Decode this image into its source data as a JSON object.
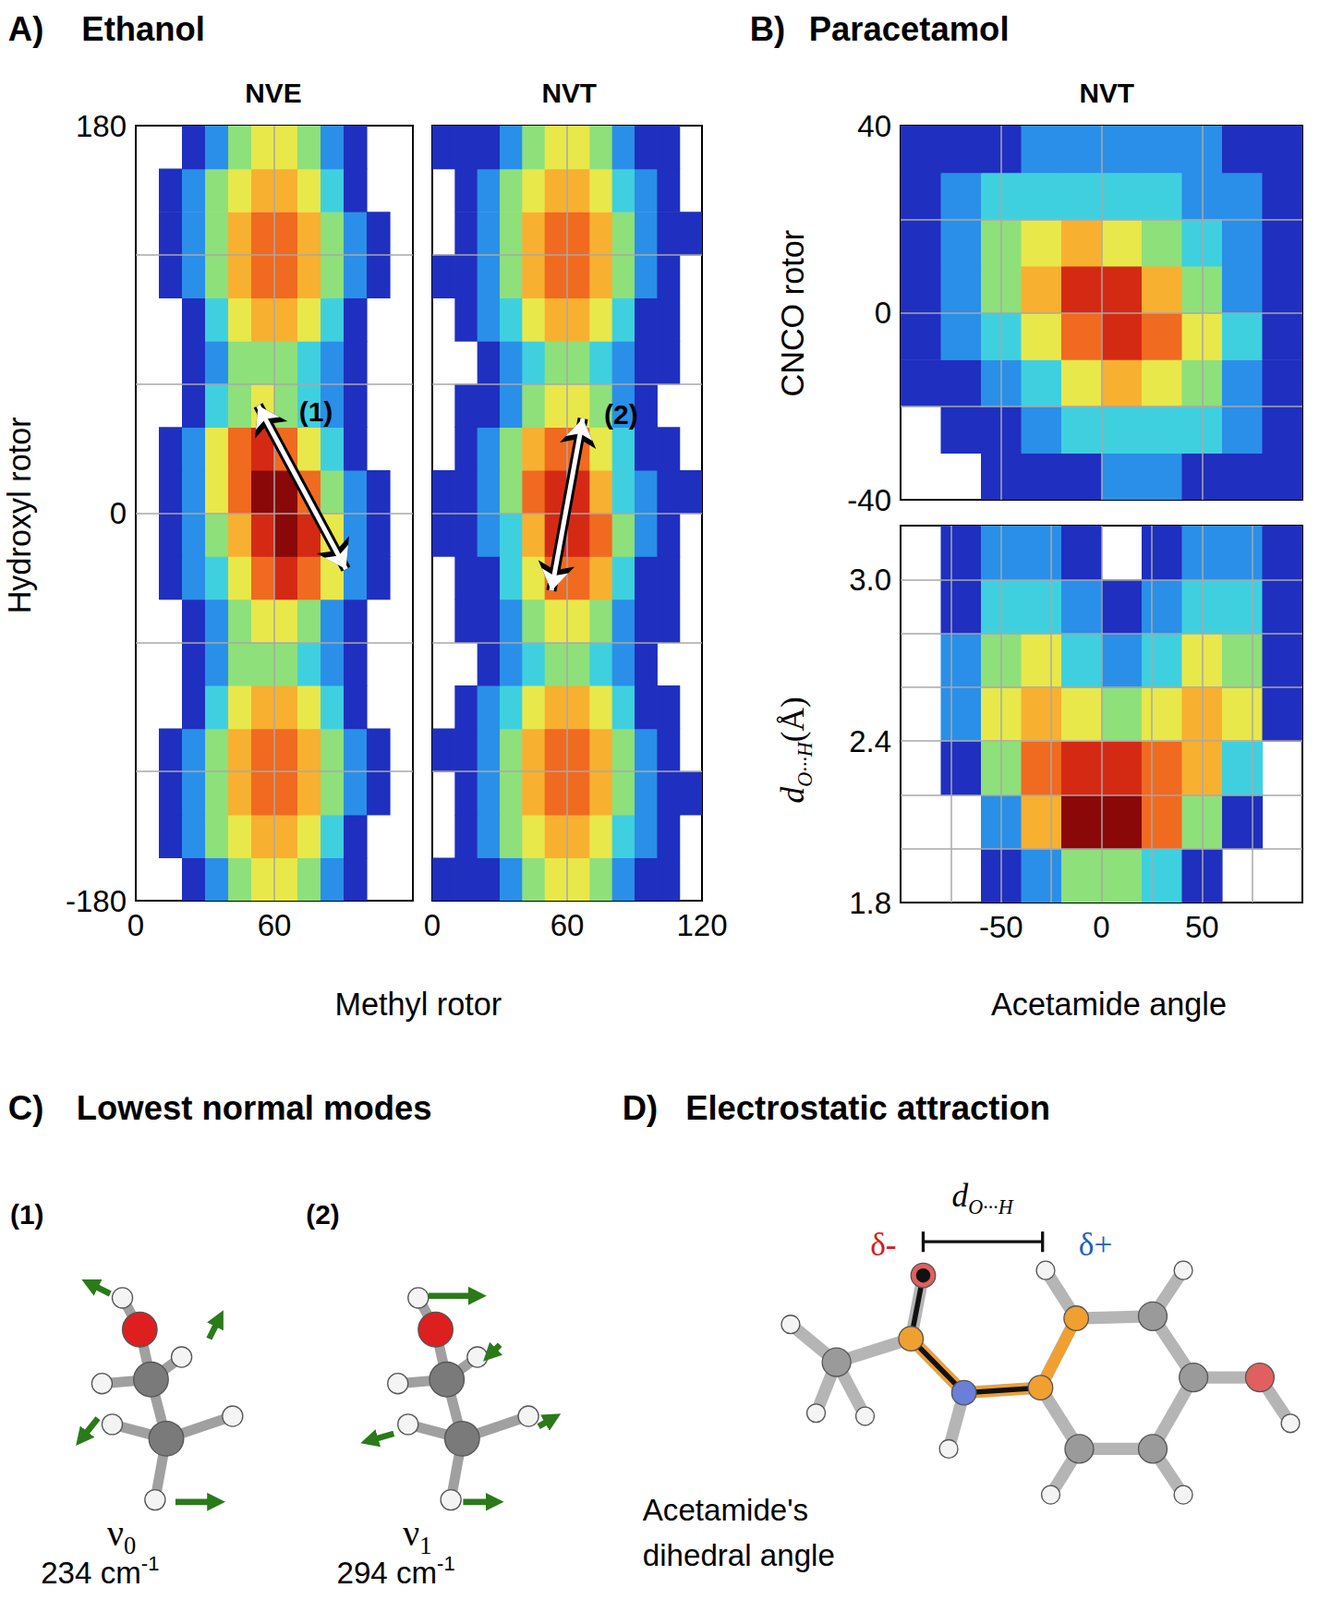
{
  "panels": [
    {
      "letter": "A)",
      "title": "Ethanol"
    },
    {
      "letter": "B)",
      "title": "Paracetamol"
    },
    {
      "letter": "C)",
      "title": "Lowest normal modes"
    },
    {
      "letter": "D)",
      "title": "Electrostatic attraction"
    }
  ],
  "chart_data": [
    {
      "type": "heatmap",
      "title": "NVE",
      "xlabel": "Methyl rotor",
      "ylabel": "Hydroxyl rotor",
      "xlim": [
        0,
        120
      ],
      "xticks": [
        0,
        60
      ],
      "ylim": [
        -180,
        180
      ],
      "yticks": [
        -180,
        0,
        180
      ],
      "grid": true,
      "xgrid": [
        60
      ],
      "ygrid": [
        -120,
        -60,
        0,
        60,
        120
      ],
      "x": [
        5,
        15,
        25,
        35,
        45,
        55,
        65,
        75,
        85,
        95,
        105,
        115
      ],
      "y": [
        -170,
        -150,
        -130,
        -110,
        -90,
        -70,
        -50,
        -30,
        -10,
        10,
        30,
        50,
        70,
        90,
        110,
        130,
        150,
        170
      ],
      "cells": [
        [
          0,
          0,
          1,
          2,
          4,
          5,
          5,
          4,
          2,
          1,
          0,
          0
        ],
        [
          0,
          1,
          2,
          4,
          5,
          6,
          6,
          5,
          3,
          1,
          0,
          0
        ],
        [
          0,
          1,
          2,
          4,
          6,
          7,
          7,
          6,
          4,
          2,
          1,
          0
        ],
        [
          0,
          1,
          2,
          4,
          6,
          7,
          7,
          6,
          4,
          2,
          1,
          0
        ],
        [
          0,
          0,
          1,
          3,
          5,
          6,
          6,
          5,
          3,
          1,
          0,
          0
        ],
        [
          0,
          0,
          1,
          2,
          4,
          4,
          4,
          3,
          2,
          1,
          0,
          0
        ],
        [
          0,
          0,
          1,
          2,
          4,
          5,
          5,
          4,
          2,
          1,
          0,
          0
        ],
        [
          0,
          1,
          2,
          3,
          5,
          7,
          8,
          7,
          5,
          2,
          1,
          0
        ],
        [
          0,
          1,
          2,
          4,
          6,
          8,
          9,
          8,
          5,
          2,
          1,
          0
        ],
        [
          0,
          1,
          2,
          5,
          7,
          9,
          9,
          7,
          4,
          2,
          1,
          0
        ],
        [
          0,
          1,
          2,
          5,
          7,
          8,
          7,
          5,
          3,
          1,
          0,
          0
        ],
        [
          0,
          0,
          1,
          3,
          4,
          5,
          4,
          3,
          2,
          1,
          0,
          0
        ],
        [
          0,
          0,
          1,
          2,
          4,
          4,
          4,
          3,
          2,
          1,
          0,
          0
        ],
        [
          0,
          0,
          1,
          3,
          5,
          6,
          6,
          5,
          3,
          1,
          0,
          0
        ],
        [
          0,
          1,
          2,
          4,
          6,
          7,
          7,
          6,
          4,
          2,
          1,
          0
        ],
        [
          0,
          1,
          2,
          4,
          6,
          7,
          7,
          6,
          4,
          2,
          1,
          0
        ],
        [
          0,
          1,
          2,
          4,
          5,
          6,
          6,
          5,
          3,
          1,
          0,
          0
        ],
        [
          0,
          0,
          1,
          2,
          4,
          5,
          5,
          4,
          2,
          1,
          0,
          0
        ]
      ],
      "annotations": [
        {
          "text": "(1)",
          "x": 78,
          "y": 47,
          "arrow": [
            [
              53,
              50
            ],
            [
              91,
              -26
            ]
          ]
        }
      ]
    },
    {
      "type": "heatmap",
      "title": "NVT",
      "tick_labels": "x",
      "xlim": [
        0,
        120
      ],
      "xticks": [
        0,
        60,
        120
      ],
      "ylim": [
        -180,
        180
      ],
      "yticks": [
        -180,
        0,
        180
      ],
      "grid": true,
      "xgrid": [
        60
      ],
      "ygrid": [
        -120,
        -60,
        0,
        60,
        120
      ],
      "x": [
        5,
        15,
        25,
        35,
        45,
        55,
        65,
        75,
        85,
        95,
        105,
        115
      ],
      "y": [
        -170,
        -150,
        -130,
        -110,
        -90,
        -70,
        -50,
        -30,
        -10,
        10,
        30,
        50,
        70,
        90,
        110,
        130,
        150,
        170
      ],
      "cells": [
        [
          1,
          1,
          1,
          2,
          4,
          5,
          5,
          4,
          2,
          1,
          1,
          0
        ],
        [
          0,
          1,
          2,
          4,
          5,
          6,
          6,
          5,
          3,
          2,
          1,
          0
        ],
        [
          0,
          1,
          2,
          4,
          6,
          7,
          7,
          6,
          4,
          2,
          1,
          1
        ],
        [
          1,
          1,
          2,
          4,
          6,
          7,
          7,
          6,
          4,
          2,
          1,
          0
        ],
        [
          0,
          1,
          2,
          3,
          5,
          6,
          6,
          5,
          3,
          1,
          1,
          0
        ],
        [
          0,
          0,
          1,
          2,
          3,
          4,
          4,
          3,
          2,
          1,
          0,
          0
        ],
        [
          0,
          1,
          1,
          2,
          4,
          5,
          5,
          4,
          2,
          1,
          1,
          0
        ],
        [
          0,
          1,
          1,
          3,
          5,
          7,
          7,
          6,
          3,
          1,
          1,
          0
        ],
        [
          1,
          1,
          2,
          3,
          6,
          8,
          8,
          7,
          4,
          2,
          1,
          0
        ],
        [
          1,
          1,
          2,
          4,
          7,
          8,
          8,
          6,
          3,
          2,
          1,
          1
        ],
        [
          0,
          1,
          2,
          4,
          6,
          7,
          7,
          5,
          3,
          1,
          1,
          0
        ],
        [
          0,
          1,
          1,
          2,
          4,
          5,
          5,
          4,
          2,
          1,
          0,
          0
        ],
        [
          0,
          0,
          1,
          2,
          3,
          4,
          4,
          3,
          2,
          1,
          1,
          0
        ],
        [
          0,
          1,
          2,
          3,
          5,
          6,
          6,
          5,
          3,
          1,
          1,
          0
        ],
        [
          1,
          1,
          2,
          4,
          6,
          7,
          7,
          6,
          4,
          2,
          1,
          0
        ],
        [
          0,
          1,
          2,
          4,
          6,
          7,
          7,
          6,
          4,
          2,
          1,
          1
        ],
        [
          0,
          1,
          2,
          4,
          5,
          6,
          6,
          5,
          3,
          2,
          1,
          0
        ],
        [
          1,
          1,
          1,
          2,
          4,
          5,
          5,
          4,
          2,
          1,
          1,
          0
        ]
      ],
      "annotations": [
        {
          "text": "(2)",
          "x": 84,
          "y": 46,
          "arrow": [
            [
              67,
              44
            ],
            [
              53,
              -36
            ]
          ]
        }
      ]
    },
    {
      "type": "heatmap",
      "title": "NVT",
      "ylabel": "CNCO rotor",
      "tick_labels": "y",
      "xlim": [
        -100,
        100
      ],
      "xticks": [
        -50,
        0,
        50
      ],
      "ylim": [
        -40,
        40
      ],
      "yticks": [
        -40,
        0,
        40
      ],
      "grid": true,
      "xgrid": [
        -50,
        0,
        50
      ],
      "ygrid": [
        -20,
        0,
        20
      ],
      "x": [
        -90,
        -70,
        -50,
        -30,
        -10,
        10,
        30,
        50,
        70,
        90
      ],
      "y": [
        -35,
        -25,
        -15,
        -5,
        5,
        15,
        25,
        35
      ],
      "cells": [
        [
          0,
          0,
          1,
          1,
          1,
          2,
          2,
          1,
          1,
          1
        ],
        [
          0,
          1,
          1,
          2,
          3,
          3,
          3,
          3,
          2,
          1
        ],
        [
          1,
          1,
          2,
          3,
          5,
          6,
          5,
          4,
          2,
          1
        ],
        [
          1,
          2,
          3,
          5,
          7,
          8,
          7,
          5,
          3,
          1
        ],
        [
          1,
          2,
          4,
          6,
          8,
          8,
          6,
          4,
          2,
          1
        ],
        [
          1,
          2,
          4,
          5,
          6,
          5,
          4,
          3,
          2,
          1
        ],
        [
          1,
          2,
          3,
          3,
          3,
          3,
          3,
          2,
          2,
          1
        ],
        [
          1,
          1,
          1,
          2,
          2,
          2,
          2,
          2,
          1,
          1
        ]
      ]
    },
    {
      "type": "heatmap",
      "xlabel": "Acetamide angle",
      "ylabel": {
        "main": "d",
        "sub": "O···H",
        "unit": "(Å)"
      },
      "xlim": [
        -100,
        100
      ],
      "xticks": [
        -50,
        0,
        50
      ],
      "ylim": [
        1.8,
        3.2
      ],
      "yticks": [
        1.8,
        2.4,
        {
          "value": 3,
          "label": "3.0"
        }
      ],
      "grid": true,
      "xgrid": [
        -75,
        -50,
        -25,
        0,
        25,
        50,
        75
      ],
      "ygrid": [
        2,
        2.2,
        2.4,
        2.6,
        2.8,
        3
      ],
      "x": [
        -90,
        -70,
        -50,
        -30,
        -10,
        10,
        30,
        50,
        70,
        90
      ],
      "y": [
        1.9,
        2.1,
        2.3,
        2.5,
        2.7,
        2.9,
        3.1
      ],
      "cells": [
        [
          0,
          0,
          1,
          2,
          4,
          4,
          3,
          1,
          0,
          0
        ],
        [
          0,
          0,
          2,
          6,
          9,
          9,
          7,
          4,
          1,
          0
        ],
        [
          0,
          1,
          4,
          7,
          8,
          8,
          7,
          6,
          3,
          0
        ],
        [
          0,
          2,
          5,
          6,
          5,
          4,
          5,
          6,
          5,
          1
        ],
        [
          0,
          2,
          4,
          5,
          3,
          2,
          3,
          5,
          4,
          1
        ],
        [
          0,
          1,
          3,
          3,
          2,
          1,
          2,
          3,
          3,
          1
        ],
        [
          0,
          1,
          2,
          2,
          1,
          0,
          1,
          2,
          2,
          1
        ]
      ]
    }
  ],
  "normal_modes": [
    {
      "label": "(1)",
      "symbol": "ν",
      "index": "0",
      "frequency": "234 cm",
      "exponent": "-1"
    },
    {
      "label": "(2)",
      "symbol": "ν",
      "index": "1",
      "frequency": "294 cm",
      "exponent": "-1"
    }
  ],
  "electrostatic": {
    "distance": {
      "main": "d",
      "sub": "O···H"
    },
    "negative": "δ-",
    "positive": "δ+",
    "caption": [
      "Acetamide's",
      "dihedral angle"
    ]
  }
}
